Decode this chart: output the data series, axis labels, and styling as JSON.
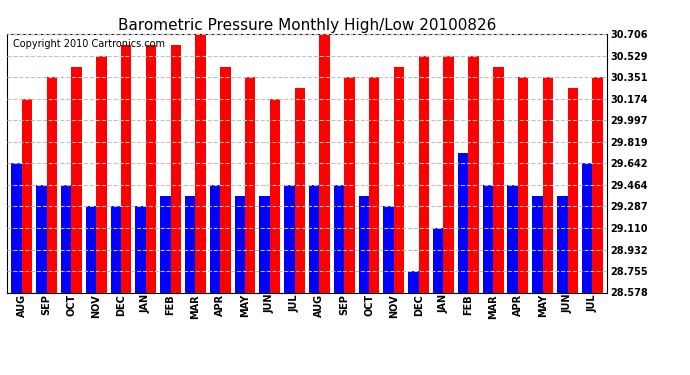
{
  "title": "Barometric Pressure Monthly High/Low 20100826",
  "copyright": "Copyright 2010 Cartronics.com",
  "months": [
    "AUG",
    "SEP",
    "OCT",
    "NOV",
    "DEC",
    "JAN",
    "FEB",
    "MAR",
    "APR",
    "MAY",
    "JUN",
    "JUL",
    "AUG",
    "SEP",
    "OCT",
    "NOV",
    "DEC",
    "JAN",
    "FEB",
    "MAR",
    "APR",
    "MAY",
    "JUN",
    "JUL"
  ],
  "highs": [
    30.174,
    30.351,
    30.44,
    30.529,
    30.617,
    30.617,
    30.617,
    30.706,
    30.44,
    30.351,
    30.174,
    30.263,
    30.706,
    30.351,
    30.351,
    30.44,
    30.529,
    30.529,
    30.529,
    30.44,
    30.351,
    30.351,
    30.263,
    30.351
  ],
  "lows": [
    29.642,
    29.464,
    29.464,
    29.287,
    29.287,
    29.287,
    29.375,
    29.375,
    29.464,
    29.375,
    29.375,
    29.464,
    29.464,
    29.464,
    29.375,
    29.287,
    28.755,
    29.11,
    29.73,
    29.464,
    29.464,
    29.375,
    29.375,
    29.642
  ],
  "bar_color_high": "#FF0000",
  "bar_color_low": "#0000FF",
  "bg_color": "#FFFFFF",
  "grid_color": "#C0C0C0",
  "yticks": [
    28.578,
    28.755,
    28.932,
    29.11,
    29.287,
    29.464,
    29.642,
    29.819,
    29.997,
    30.174,
    30.351,
    30.529,
    30.706
  ],
  "ymin": 28.578,
  "ymax": 30.706,
  "title_fontsize": 11,
  "copyright_fontsize": 7,
  "tick_fontsize": 7,
  "figwidth": 6.9,
  "figheight": 3.75,
  "dpi": 100
}
